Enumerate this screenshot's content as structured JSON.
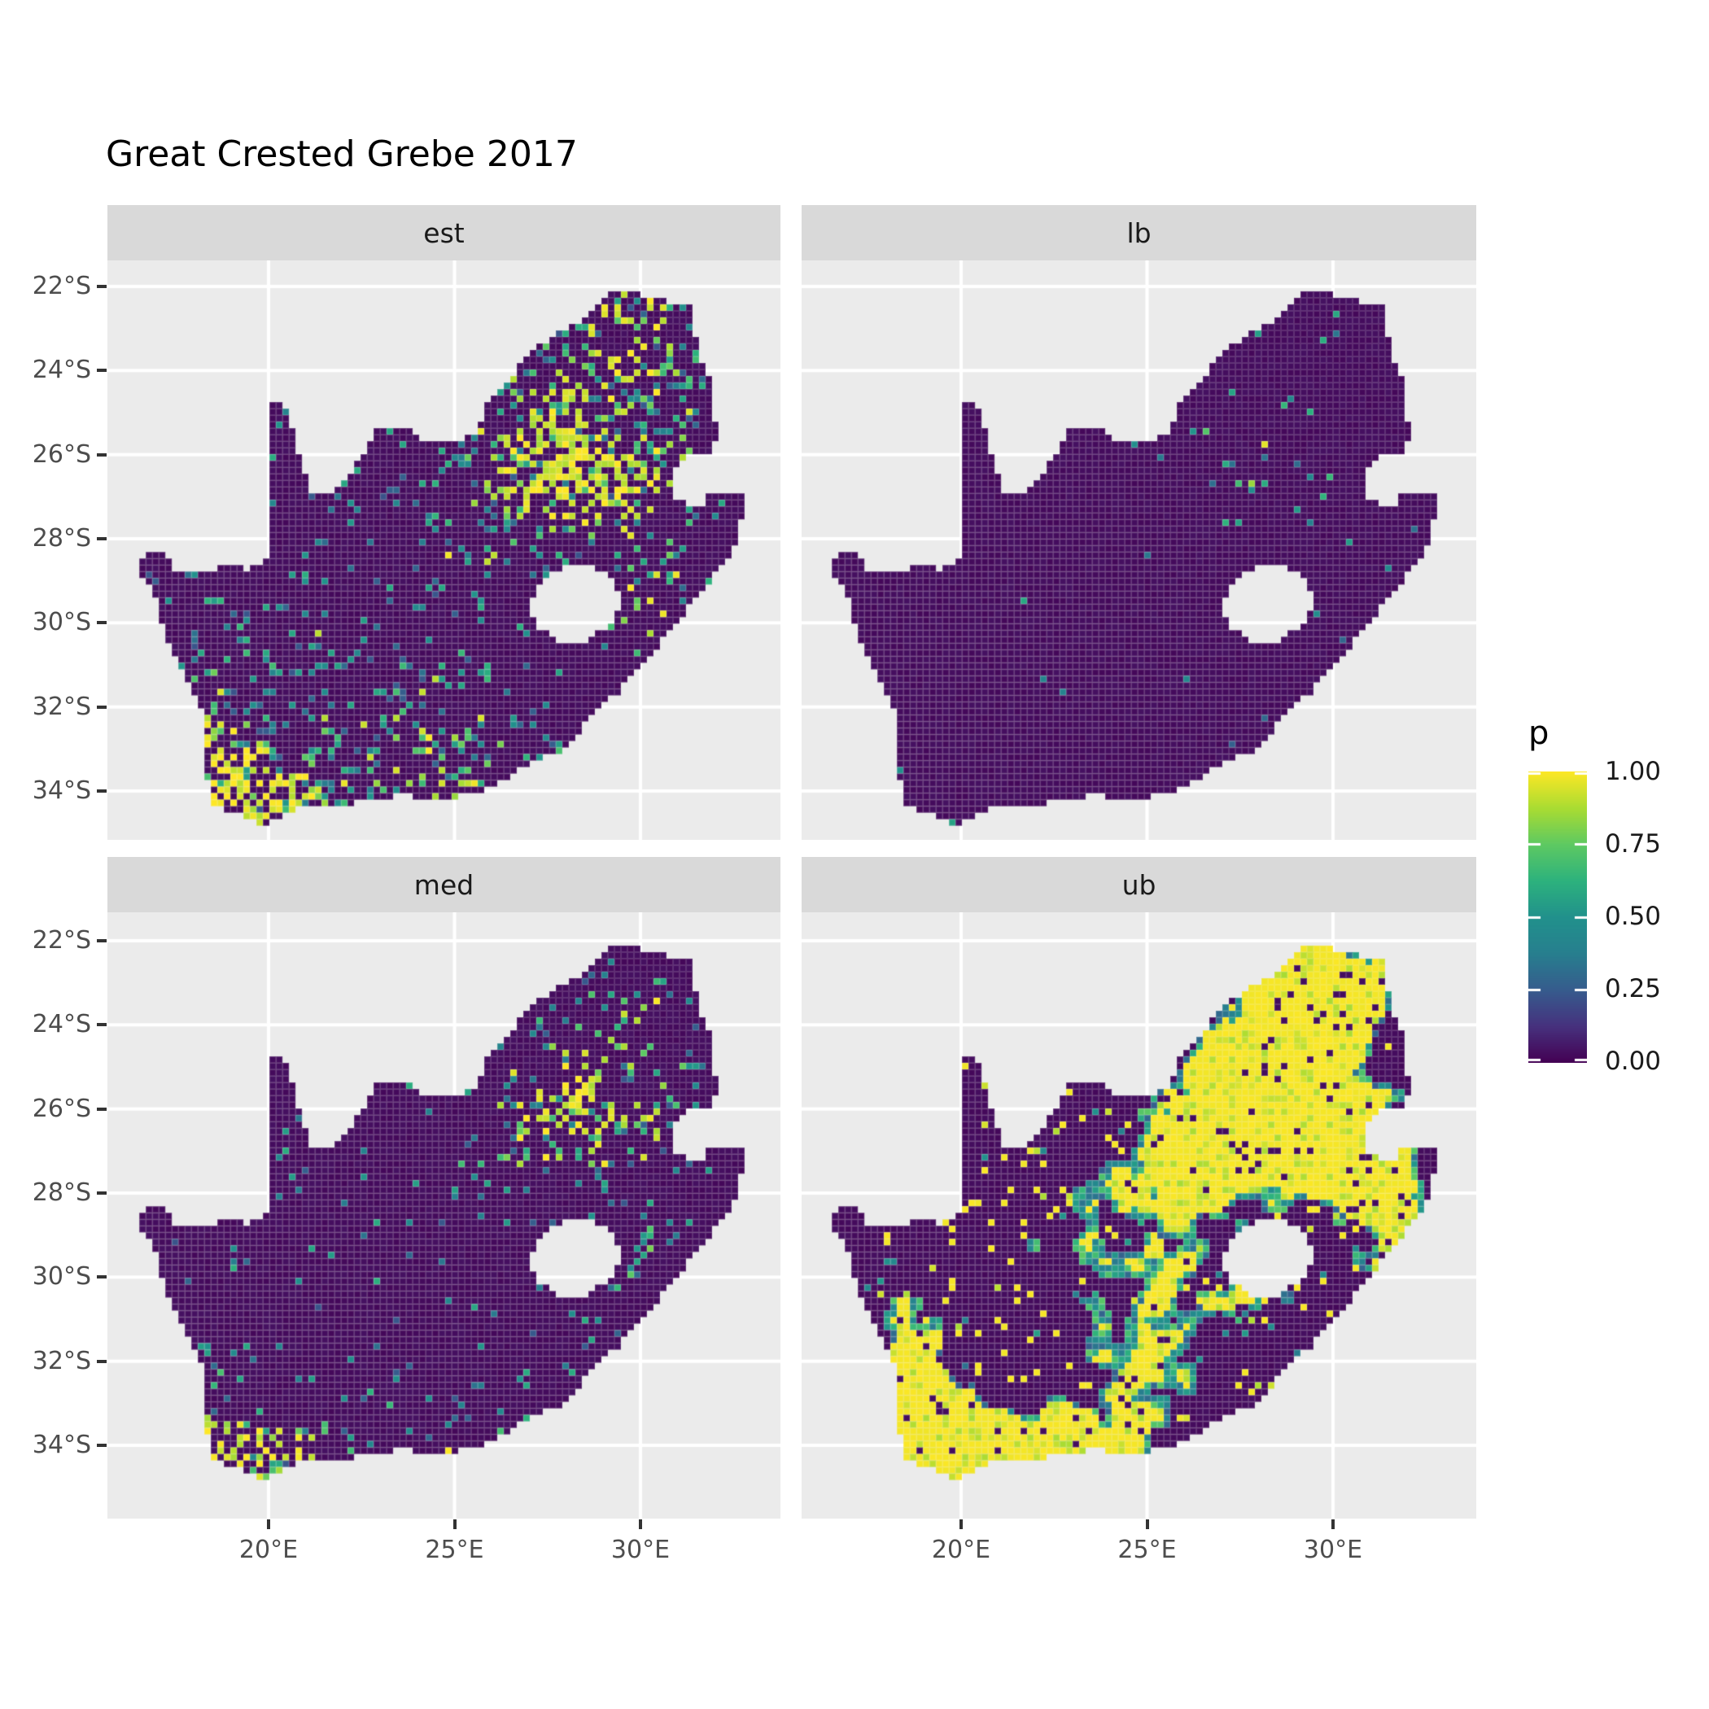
{
  "title": "Great Crested Grebe 2017",
  "facets": [
    {
      "label": "est"
    },
    {
      "label": "lb"
    },
    {
      "label": "med"
    },
    {
      "label": "ub"
    }
  ],
  "axes": {
    "y_tick_labels": [
      "22°S",
      "24°S",
      "26°S",
      "28°S",
      "30°S",
      "32°S",
      "34°S"
    ],
    "x_tick_labels": [
      "20°E",
      "25°E",
      "30°E"
    ]
  },
  "legend": {
    "title": "p",
    "ticks": [
      "1.00",
      "0.75",
      "0.50",
      "0.25",
      "0.00"
    ]
  },
  "chart_data": {
    "type": "heatmap",
    "subtype": "faceted-raster-map",
    "title": "Great Crested Grebe 2017",
    "facet_labels": [
      "est",
      "lb",
      "med",
      "ub"
    ],
    "x": {
      "tick_values": [
        20,
        25,
        30
      ],
      "tick_labels": [
        "20°E",
        "25°E",
        "30°E"
      ],
      "range_deg_lon": [
        15.7,
        33.8
      ]
    },
    "y": {
      "tick_values": [
        -22,
        -24,
        -26,
        -28,
        -30,
        -32,
        -34
      ],
      "tick_labels": [
        "22°S",
        "24°S",
        "26°S",
        "28°S",
        "30°S",
        "32°S",
        "34°S"
      ],
      "range_deg_lat": [
        -35.4,
        -21.5
      ]
    },
    "legend": {
      "title": "p",
      "tick_values": [
        1.0,
        0.75,
        0.5,
        0.25,
        0.0
      ],
      "range": [
        0,
        1
      ],
      "position": "right"
    },
    "grid": "major-only-white",
    "colors": {
      "panel_bg": "#EBEBEB",
      "strip_bg": "#D9D9D9",
      "gridline": "#FFFFFF",
      "axis_text": "#4D4D4D",
      "tick_mark": "#333333",
      "strip_text": "#1A1A1A",
      "viridis_stops": [
        [
          0.0,
          "#440154"
        ],
        [
          0.125,
          "#46327E"
        ],
        [
          0.25,
          "#365C8D"
        ],
        [
          0.375,
          "#277F8E"
        ],
        [
          0.5,
          "#21918C"
        ],
        [
          0.625,
          "#2DB27D"
        ],
        [
          0.75,
          "#5EC962"
        ],
        [
          0.875,
          "#AADC32"
        ],
        [
          1.0,
          "#FDE725"
        ]
      ]
    },
    "cell_deg": {
      "lon": 0.175,
      "lat": 0.155
    },
    "outline": [
      [
        16.45,
        -28.6
      ],
      [
        17.05,
        -28.2
      ],
      [
        17.45,
        -28.7
      ],
      [
        18.1,
        -28.85
      ],
      [
        18.8,
        -28.65
      ],
      [
        19.4,
        -28.72
      ],
      [
        19.98,
        -28.45
      ],
      [
        19.98,
        -24.75
      ],
      [
        20.45,
        -24.8
      ],
      [
        20.65,
        -25.4
      ],
      [
        20.85,
        -26.1
      ],
      [
        21.15,
        -26.87
      ],
      [
        21.7,
        -26.85
      ],
      [
        22.3,
        -26.35
      ],
      [
        22.9,
        -25.45
      ],
      [
        23.5,
        -25.3
      ],
      [
        24.2,
        -25.65
      ],
      [
        25.0,
        -25.7
      ],
      [
        25.6,
        -25.45
      ],
      [
        25.9,
        -24.7
      ],
      [
        26.5,
        -24.25
      ],
      [
        26.9,
        -23.65
      ],
      [
        27.6,
        -23.2
      ],
      [
        28.3,
        -22.9
      ],
      [
        29.05,
        -22.2
      ],
      [
        29.7,
        -22.1
      ],
      [
        30.3,
        -22.3
      ],
      [
        31.3,
        -22.4
      ],
      [
        31.6,
        -23.6
      ],
      [
        31.9,
        -24.3
      ],
      [
        32.05,
        -25.6
      ],
      [
        31.95,
        -25.95
      ],
      [
        31.3,
        -25.95
      ],
      [
        30.85,
        -26.35
      ],
      [
        30.9,
        -27.0
      ],
      [
        31.5,
        -27.3
      ],
      [
        32.0,
        -26.85
      ],
      [
        32.9,
        -26.85
      ],
      [
        32.55,
        -28.2
      ],
      [
        32.05,
        -28.8
      ],
      [
        31.05,
        -29.9
      ],
      [
        30.3,
        -30.75
      ],
      [
        29.45,
        -31.6
      ],
      [
        28.6,
        -32.3
      ],
      [
        27.9,
        -33.05
      ],
      [
        27.05,
        -33.3
      ],
      [
        26.4,
        -33.75
      ],
      [
        25.65,
        -34.0
      ],
      [
        24.8,
        -34.2
      ],
      [
        23.6,
        -34.1
      ],
      [
        22.55,
        -34.2
      ],
      [
        21.75,
        -34.4
      ],
      [
        20.5,
        -34.45
      ],
      [
        20.0,
        -34.83
      ],
      [
        19.3,
        -34.62
      ],
      [
        18.8,
        -34.4
      ],
      [
        18.45,
        -34.32
      ],
      [
        18.4,
        -33.9
      ],
      [
        18.3,
        -33.5
      ],
      [
        18.35,
        -33.0
      ],
      [
        18.25,
        -32.7
      ],
      [
        18.2,
        -32.0
      ],
      [
        17.85,
        -31.4
      ],
      [
        17.25,
        -30.4
      ],
      [
        16.95,
        -29.4
      ]
    ],
    "lesotho_hole": [
      [
        27.0,
        -29.6
      ],
      [
        27.35,
        -28.95
      ],
      [
        28.0,
        -28.65
      ],
      [
        28.7,
        -28.6
      ],
      [
        29.35,
        -29.05
      ],
      [
        29.45,
        -29.55
      ],
      [
        29.15,
        -30.05
      ],
      [
        28.4,
        -30.5
      ],
      [
        27.75,
        -30.4
      ],
      [
        27.2,
        -30.05
      ]
    ],
    "facet_textures": [
      {
        "label": "est",
        "mode": "speckle",
        "seed": 1,
        "base": 0.055,
        "hot_gain": 0.5,
        "yellow_bias": 0.55,
        "hotspots": [
          [
            28.0,
            -26.1,
            0.9,
            0.7,
            1.0
          ],
          [
            26.8,
            -26.7,
            1.3,
            0.9,
            0.45
          ],
          [
            29.8,
            -23.6,
            1.4,
            0.8,
            0.4
          ],
          [
            29.3,
            -22.6,
            1.5,
            0.5,
            0.5
          ],
          [
            30.3,
            -25.0,
            0.8,
            0.8,
            0.45
          ],
          [
            30.1,
            -26.6,
            0.8,
            0.6,
            0.5
          ],
          [
            27.5,
            -25.0,
            1.0,
            0.8,
            0.5
          ],
          [
            29.0,
            -26.8,
            1.5,
            1.2,
            0.35
          ],
          [
            30.3,
            -29.5,
            0.9,
            0.8,
            0.35
          ],
          [
            19.2,
            -33.9,
            1.0,
            0.8,
            0.85
          ],
          [
            20.6,
            -34.4,
            1.2,
            0.5,
            0.8
          ],
          [
            18.4,
            -32.6,
            0.6,
            1.2,
            0.5
          ],
          [
            25.5,
            -33.8,
            1.8,
            0.8,
            0.35
          ],
          [
            22.5,
            -32.5,
            2.5,
            1.5,
            0.18
          ]
        ]
      },
      {
        "label": "lb",
        "mode": "speckle",
        "seed": 2,
        "base": 0.006,
        "hot_gain": 0.1,
        "yellow_bias": 0.12,
        "hotspots": [
          [
            28.0,
            -25.8,
            0.8,
            0.9,
            1.0
          ],
          [
            29.0,
            -26.9,
            0.7,
            0.5,
            0.35
          ]
        ]
      },
      {
        "label": "med",
        "mode": "speckle",
        "seed": 3,
        "base": 0.03,
        "hot_gain": 0.32,
        "yellow_bias": 0.5,
        "hotspots": [
          [
            28.0,
            -26.1,
            0.9,
            0.7,
            0.9
          ],
          [
            26.8,
            -26.7,
            1.3,
            0.9,
            0.3
          ],
          [
            29.8,
            -23.6,
            1.4,
            0.8,
            0.25
          ],
          [
            30.3,
            -25.0,
            0.8,
            0.8,
            0.3
          ],
          [
            30.1,
            -26.6,
            0.8,
            0.6,
            0.35
          ],
          [
            27.5,
            -25.0,
            1.0,
            0.8,
            0.35
          ],
          [
            30.3,
            -29.5,
            0.9,
            0.8,
            0.25
          ],
          [
            19.0,
            -34.1,
            0.8,
            0.6,
            0.8
          ],
          [
            20.3,
            -34.4,
            1.0,
            0.5,
            0.7
          ],
          [
            18.5,
            -32.8,
            0.5,
            1.0,
            0.35
          ],
          [
            25.5,
            -33.9,
            1.8,
            0.7,
            0.2
          ]
        ]
      },
      {
        "label": "ub",
        "mode": "blob",
        "seed": 4,
        "scatter": 0.06,
        "yellow_hi": 0.42,
        "mid_lo": 0.34,
        "hotspots": [
          [
            28.2,
            -25.6,
            1.6,
            1.3,
            0.9
          ],
          [
            29.8,
            -23.3,
            1.5,
            1.0,
            0.75
          ],
          [
            30.5,
            -26.8,
            1.2,
            1.0,
            0.6
          ],
          [
            26.8,
            -26.9,
            1.3,
            0.9,
            0.5
          ],
          [
            31.3,
            -28.3,
            1.0,
            1.2,
            0.5
          ],
          [
            19.3,
            -33.9,
            1.2,
            1.0,
            0.8
          ],
          [
            20.8,
            -34.3,
            1.5,
            0.6,
            0.85
          ],
          [
            18.6,
            -32.3,
            0.8,
            1.5,
            0.55
          ],
          [
            25.0,
            -31.8,
            1.2,
            1.0,
            0.45
          ],
          [
            24.0,
            -33.9,
            2.0,
            0.8,
            0.4
          ],
          [
            27.5,
            -30.0,
            1.5,
            1.5,
            0.3
          ],
          [
            22.0,
            -28.5,
            2.0,
            2.0,
            0.2
          ],
          [
            25.1,
            -28.0,
            1.3,
            1.3,
            0.3
          ]
        ]
      }
    ]
  }
}
